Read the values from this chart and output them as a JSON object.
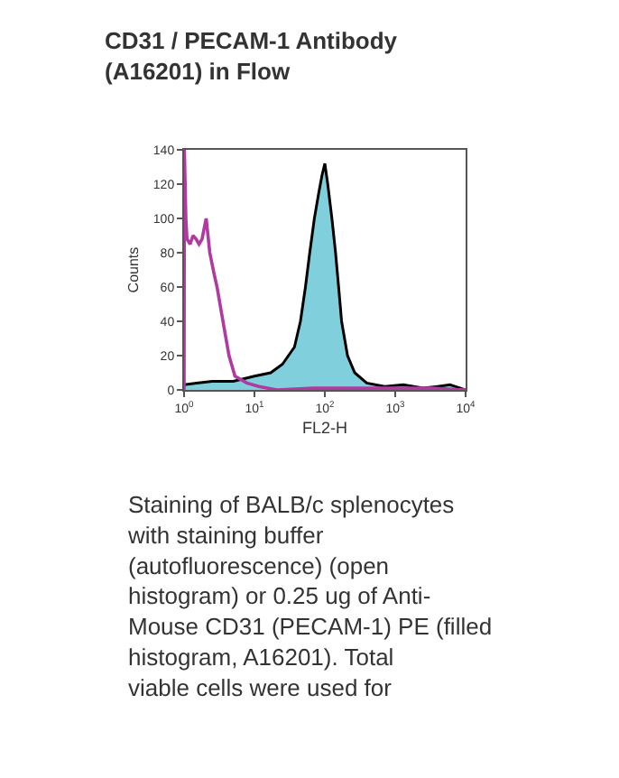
{
  "chart_data": {
    "type": "area",
    "title": "CD31 / PECAM-1 Antibody (A16201) in Flow",
    "xlabel": "FL2-H",
    "ylabel": "Counts",
    "log": "x",
    "xlim": [
      1,
      10000
    ],
    "xticks": [
      {
        "value": 1,
        "label": "10$^{0}$"
      },
      {
        "value": 10,
        "label": "10$^{1}$"
      },
      {
        "value": 100,
        "label": "10$^{2}$"
      },
      {
        "value": 1000,
        "label": "10$^{3}$"
      },
      {
        "value": 10000,
        "label": "10$^{4}$"
      }
    ],
    "ylim": [
      0,
      140
    ],
    "yticks": [
      0,
      20,
      40,
      60,
      80,
      100,
      120,
      140
    ],
    "series": [
      {
        "type": "line",
        "color": "#b03aa0",
        "x": [
          1.0,
          1.01,
          1.06,
          1.1,
          1.22,
          1.34,
          1.48,
          1.63,
          1.8,
          2.06,
          2.32,
          2.66,
          2.94,
          3.57,
          4.35,
          5.29,
          7.8,
          11.6,
          20.9,
          67.6,
          479,
          3400,
          10000
        ],
        "values": [
          0,
          140,
          100,
          88,
          85,
          90,
          88,
          85,
          88,
          100,
          80,
          68,
          60,
          40,
          20,
          8,
          4,
          2,
          0,
          1,
          1,
          1,
          0
        ]
      },
      {
        "color": "#7fd0dc",
        "x": [
          1.0,
          1.5,
          2.5,
          5,
          10,
          17,
          25,
          37,
          45,
          53,
          61,
          71,
          82,
          91,
          100,
          110,
          126,
          142,
          157,
          173,
          210,
          266,
          394,
          710,
          1300,
          2500,
          4000,
          6000,
          10000
        ],
        "values": [
          3,
          4,
          5,
          5,
          8,
          10,
          15,
          25,
          40,
          60,
          80,
          100,
          115,
          125,
          132,
          120,
          100,
          80,
          60,
          40,
          20,
          10,
          4,
          2,
          3,
          1,
          2,
          3,
          0
        ]
      }
    ],
    "annotations": [
      "Staining of BALB/c splenocytes with staining buffer (autofluorescence) (open histogram) or 0.25 ug of Anti-Mouse CD31 (PECAM-1) PE (filled histogram, A16201). Total viable cells were used for"
    ]
  }
}
